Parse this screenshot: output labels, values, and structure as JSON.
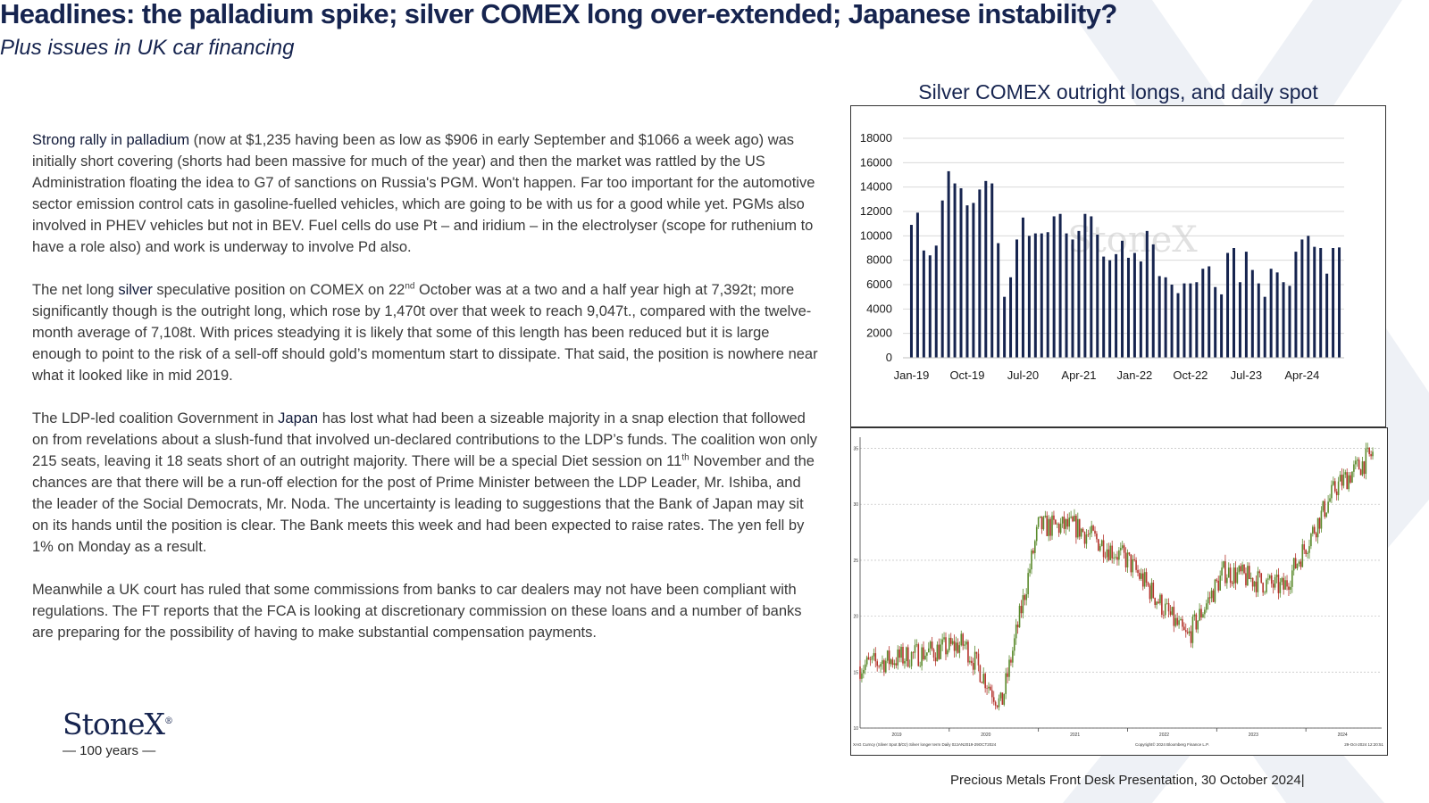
{
  "header": {
    "title": "Headlines: the palladium spike; silver COMEX long over-extended; Japanese instability?",
    "subtitle": "Plus issues in UK car financing"
  },
  "body": {
    "p1_highlight": "Strong rally in palladium",
    "p1_rest": " (now at $1,235 having been as low as $906 in early September and $1066 a week ago) was initially short covering (shorts had been massive for much of the year) and then the market was rattled by the US Administration floating the idea to G7 of sanctions on Russia's PGM.  Won't happen.  Far too important for the automotive sector emission control cats in gasoline-fuelled vehicles, which are going to be with us for a good while yet.  PGMs also involved in PHEV vehicles but not in BEV.  Fuel cells do use Pt – and iridium – in the electrolyser (scope for ruthenium to have a role also) and work is underway to involve Pd also.",
    "p2_a": "The net long ",
    "p2_highlight": "silver",
    "p2_b": " speculative position on COMEX on 22",
    "p2_sup": "nd",
    "p2_c": " October was at a two and a half year high at 7,392t; more significantly though is the outright long, which rose by 1,470t over that week to reach 9,047t., compared with the twelve-month average of 7,108t.  With prices steadying it is likely that some of this length has been reduced but it is large enough to point to the risk of a sell-off should gold’s momentum start to dissipate.  That said, the position is nowhere near what it looked like in mid 2019.",
    "p3_a": "The LDP-led coalition Government in ",
    "p3_highlight": "Japan",
    "p3_b": " has lost what had been a sizeable majority in a snap election that followed on from revelations about a slush-fund that involved un-declared contributions to the LDP’s funds.  The coalition won only 215 seats, leaving it 18 seats short of an outright majority. There will be a special Diet session on 11",
    "p3_sup": "th",
    "p3_c": " November and the chances are that there will be a run-off election for the post of Prime Minister between the LDP Leader, Mr. Ishiba, and the leader of the Social Democrats, Mr. Noda.  The uncertainty is leading to suggestions that the Bank of Japan may sit on its hands until the position is clear. The Bank meets this week and had been expected to raise rates. The yen fell by 1% on Monday as a result.",
    "p4": "Meanwhile a UK court has ruled that some commissions from banks to car dealers may not have been compliant with regulations.  The FT reports that the  FCA is looking at discretionary commission on these loans and a number of banks are preparing for the possibility of having to make substantial compensation payments."
  },
  "logo": {
    "name": "StoneX",
    "mark": "®",
    "sub": "— 100 years —"
  },
  "footer": {
    "text": "Precious Metals Front Desk Presentation, 30 October 2024|"
  },
  "chart_data": [
    {
      "type": "bar",
      "title": "Silver COMEX outright longs, and daily spot",
      "watermark": "StoneX",
      "bar_color": "#16244f",
      "ylim": [
        0,
        18000
      ],
      "yticks": [
        0,
        2000,
        4000,
        6000,
        8000,
        10000,
        12000,
        14000,
        16000,
        18000
      ],
      "x_tick_labels": [
        "Jan-19",
        "Oct-19",
        "Jul-20",
        "Apr-21",
        "Jan-22",
        "Oct-22",
        "Jul-23",
        "Apr-24"
      ],
      "x_tick_positions": [
        0,
        9,
        18,
        27,
        36,
        45,
        54,
        63
      ],
      "values": [
        10900,
        11900,
        8800,
        8400,
        9200,
        12900,
        15300,
        14300,
        13900,
        12500,
        12700,
        13800,
        14500,
        14300,
        9400,
        5000,
        6600,
        9700,
        11500,
        10000,
        10200,
        10200,
        10300,
        11600,
        11800,
        10200,
        9700,
        10400,
        11800,
        11600,
        10100,
        8300,
        8000,
        8500,
        9600,
        8200,
        8600,
        7900,
        10400,
        9300,
        6700,
        6600,
        6000,
        5300,
        6100,
        6100,
        6200,
        7300,
        7500,
        5800,
        5200,
        8600,
        9000,
        6200,
        8700,
        7200,
        6100,
        5000,
        7300,
        7000,
        6200,
        5900,
        8700,
        9700,
        10000,
        9100,
        9000,
        6900,
        9000,
        9050
      ]
    },
    {
      "type": "line",
      "title": "",
      "series_name": "Silver Spot",
      "ylim": [
        10,
        36
      ],
      "yticks": [
        10,
        15,
        20,
        25,
        30,
        35
      ],
      "x_labels": [
        "2019",
        "2020",
        "2021",
        "2022",
        "2023",
        "2024"
      ],
      "x": [
        "2019",
        "2020-03",
        "2020-08",
        "2021-01",
        "2021-06",
        "2022-01",
        "2022-09",
        "2023-02",
        "2023-10",
        "2024-05",
        "2024-10"
      ],
      "y": [
        15.5,
        17.5,
        12.0,
        28.0,
        28.0,
        25.0,
        18.0,
        24.0,
        22.5,
        31.5,
        34.5
      ],
      "footer_left": "XAG Curncy (Silver Spot  $/Oz)  Silver longer term  Daily 02JAN2019-29OCT2024",
      "footer_mid": "Copyright© 2024 Bloomberg Finance L.P.",
      "footer_right": "29-Oct-2024 12:20:51"
    }
  ]
}
